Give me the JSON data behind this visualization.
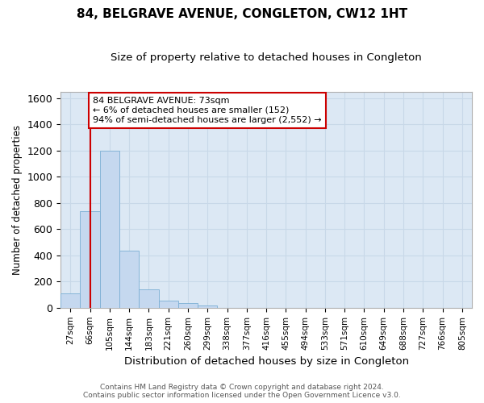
{
  "title": "84, BELGRAVE AVENUE, CONGLETON, CW12 1HT",
  "subtitle": "Size of property relative to detached houses in Congleton",
  "xlabel": "Distribution of detached houses by size in Congleton",
  "ylabel": "Number of detached properties",
  "bar_labels": [
    "27sqm",
    "66sqm",
    "105sqm",
    "144sqm",
    "183sqm",
    "221sqm",
    "260sqm",
    "299sqm",
    "338sqm",
    "377sqm",
    "416sqm",
    "455sqm",
    "494sqm",
    "533sqm",
    "571sqm",
    "610sqm",
    "649sqm",
    "688sqm",
    "727sqm",
    "766sqm",
    "805sqm"
  ],
  "bar_values": [
    110,
    735,
    1200,
    435,
    140,
    55,
    33,
    18,
    0,
    0,
    0,
    0,
    0,
    0,
    0,
    0,
    0,
    0,
    0,
    0,
    0
  ],
  "bar_color": "#c5d8ef",
  "bar_edge_color": "#7bafd4",
  "ylim": [
    0,
    1650
  ],
  "yticks": [
    0,
    200,
    400,
    600,
    800,
    1000,
    1200,
    1400,
    1600
  ],
  "property_line_x": 1.0,
  "annotation_line1": "84 BELGRAVE AVENUE: 73sqm",
  "annotation_line2": "← 6% of detached houses are smaller (152)",
  "annotation_line3": "94% of semi-detached houses are larger (2,552) →",
  "annotation_box_color": "#cc0000",
  "grid_color": "#c8d8e8",
  "bg_color": "#dce8f4",
  "footer_line1": "Contains HM Land Registry data © Crown copyright and database right 2024.",
  "footer_line2": "Contains public sector information licensed under the Open Government Licence v3.0."
}
